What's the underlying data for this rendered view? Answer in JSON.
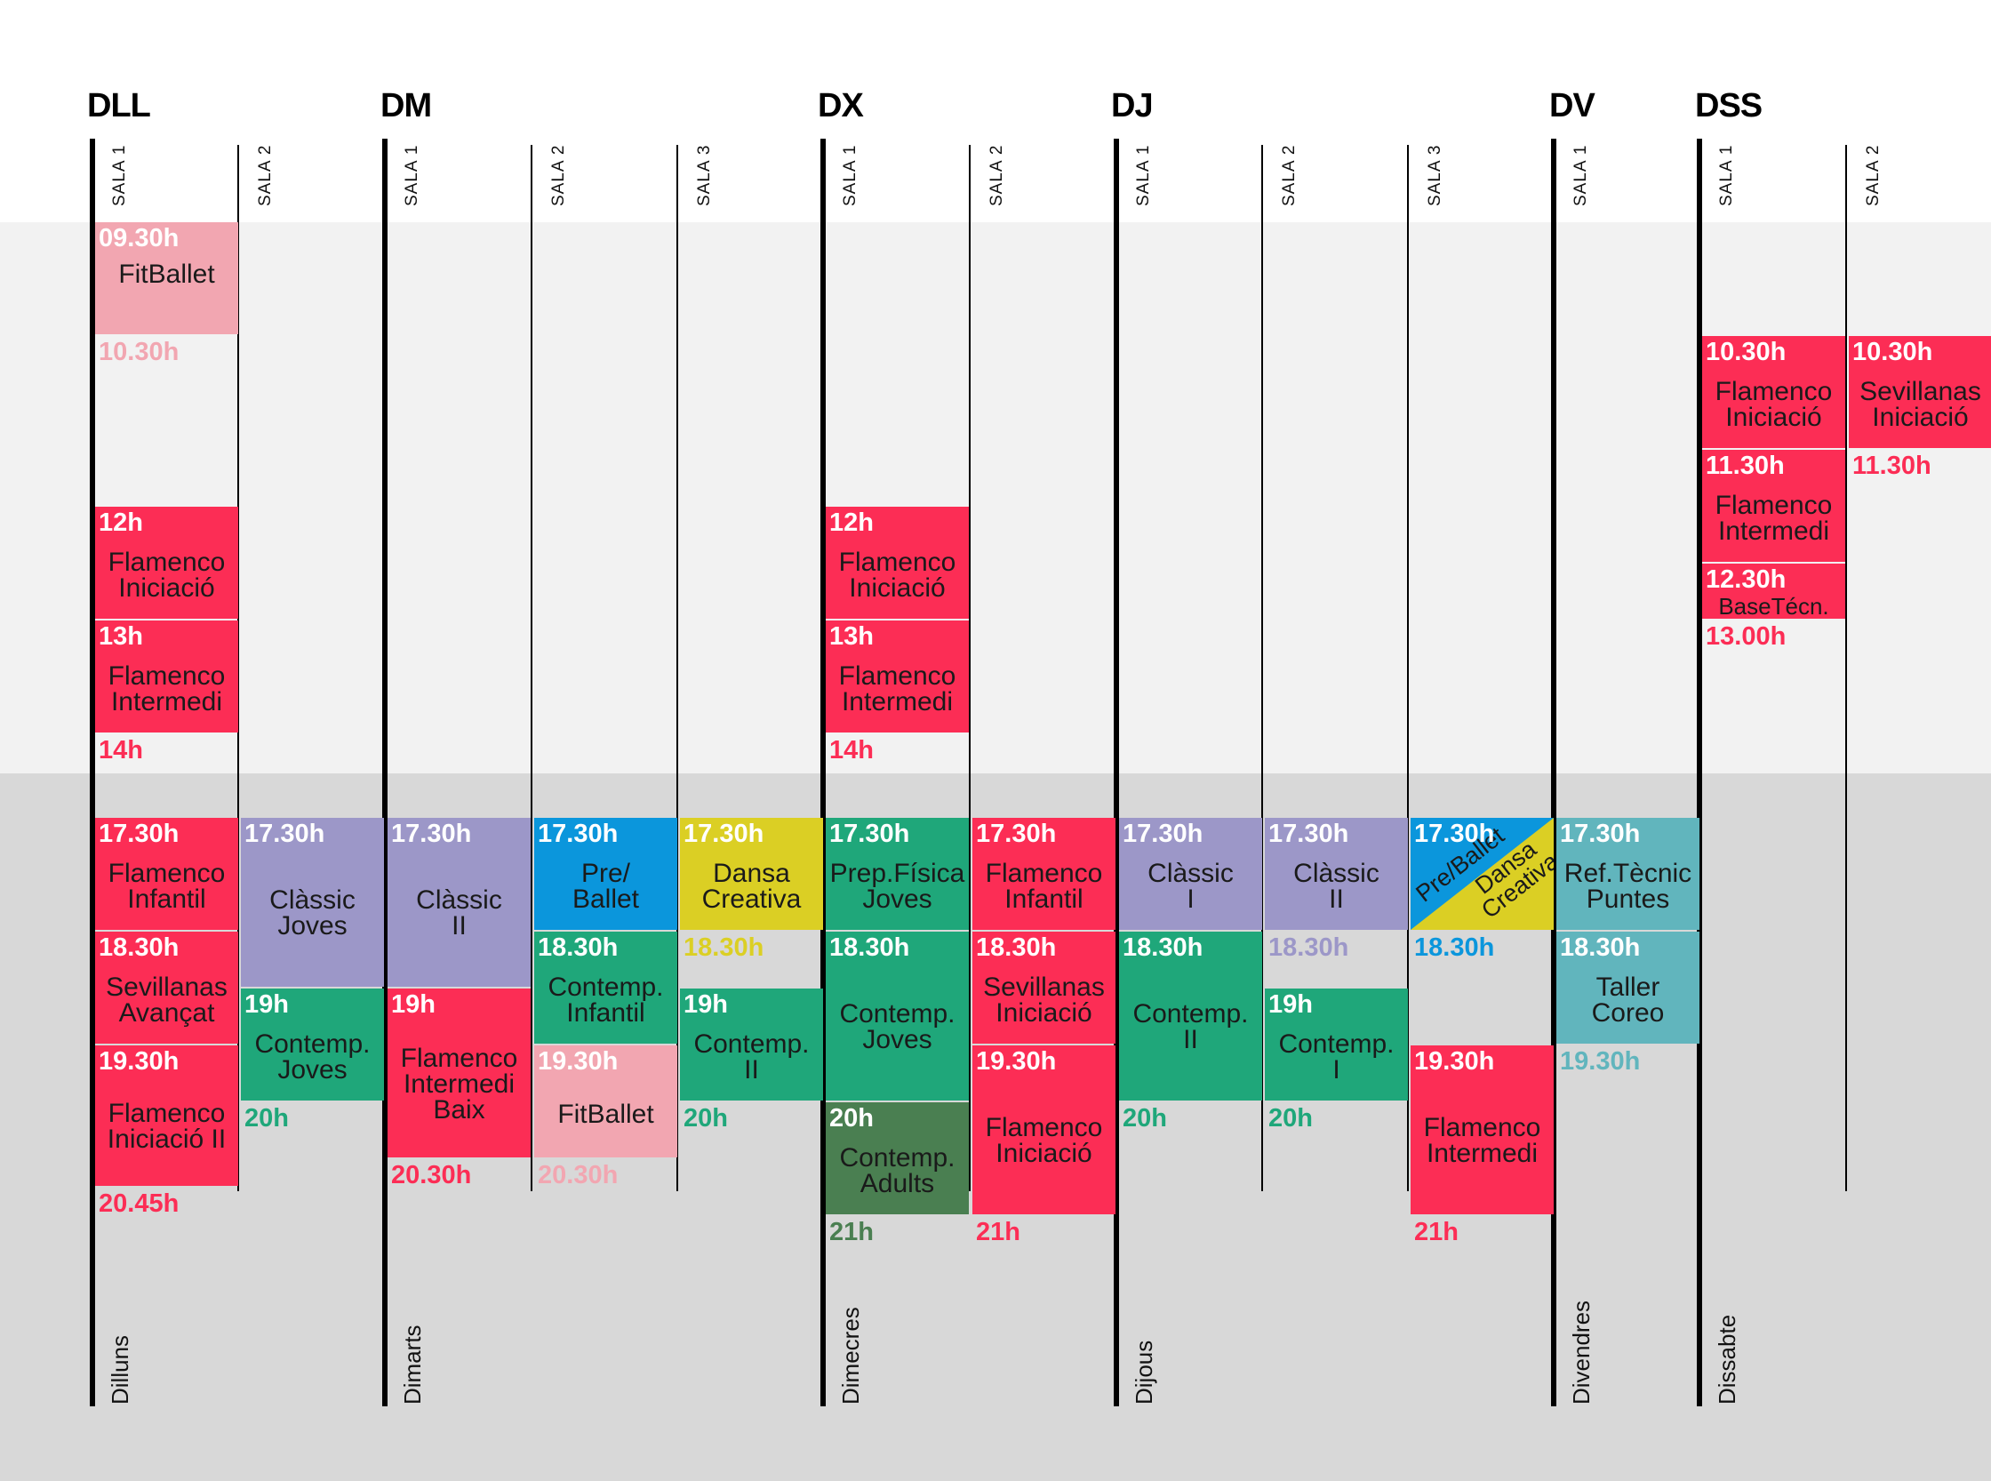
{
  "colors": {
    "white": "#ffffff",
    "light_grey": "#f2f2f2",
    "mid_grey": "#d8d8d8",
    "flamenco_red": "#fc2d55",
    "fitballet_pink": "#f2a6b1",
    "classic_lavender": "#9c97c8",
    "contemp_green": "#1fa77a",
    "adults_darkgreen": "#4a7f51",
    "preballet_blue": "#0b96dc",
    "dansa_yellow": "#dbcf24",
    "tecnic_teal": "#61b5bd"
  },
  "days": [
    {
      "code": "DLL",
      "name": "Dilluns",
      "salas": [
        "SALA 1",
        "SALA 2"
      ]
    },
    {
      "code": "DM",
      "name": "Dimarts",
      "salas": [
        "SALA 1",
        "SALA 2",
        "SALA 3"
      ]
    },
    {
      "code": "DX",
      "name": "Dimecres",
      "salas": [
        "SALA 1",
        "SALA 2"
      ]
    },
    {
      "code": "DJ",
      "name": "Dijous",
      "salas": [
        "SALA 1",
        "SALA 2",
        "SALA 3"
      ]
    },
    {
      "code": "DV",
      "name": "Divendres",
      "salas": [
        "SALA 1"
      ]
    },
    {
      "code": "DSS",
      "name": "Dissabte",
      "salas": [
        "SALA 1",
        "SALA 2"
      ]
    }
  ],
  "classes": [
    {
      "day": "DLL",
      "sala": 1,
      "start": "09.30h",
      "name": "FitBallet",
      "color": "fitballet_pink"
    },
    {
      "day": "DLL",
      "sala": 1,
      "start": "12h",
      "name": "Flamenco\nIniciació",
      "color": "flamenco_red"
    },
    {
      "day": "DLL",
      "sala": 1,
      "start": "13h",
      "name": "Flamenco\nIntermedi",
      "color": "flamenco_red"
    },
    {
      "day": "DLL",
      "sala": 1,
      "start": "17.30h",
      "name": "Flamenco\nInfantil",
      "color": "flamenco_red"
    },
    {
      "day": "DLL",
      "sala": 1,
      "start": "18.30h",
      "name": "Sevillanas\nAvançat",
      "color": "flamenco_red"
    },
    {
      "day": "DLL",
      "sala": 1,
      "start": "19.30h",
      "name": "Flamenco\nIniciació II",
      "color": "flamenco_red"
    },
    {
      "day": "DLL",
      "sala": 2,
      "start": "17.30h",
      "name": "Clàssic\nJoves",
      "color": "classic_lavender"
    },
    {
      "day": "DLL",
      "sala": 2,
      "start": "19h",
      "name": "Contemp.\nJoves",
      "color": "contemp_green"
    },
    {
      "day": "DM",
      "sala": 1,
      "start": "17.30h",
      "name": "Clàssic\nII",
      "color": "classic_lavender"
    },
    {
      "day": "DM",
      "sala": 1,
      "start": "19h",
      "name": "Flamenco\nIntermedi\nBaix",
      "color": "flamenco_red"
    },
    {
      "day": "DM",
      "sala": 2,
      "start": "17.30h",
      "name": "Pre/\nBallet",
      "color": "preballet_blue"
    },
    {
      "day": "DM",
      "sala": 2,
      "start": "18.30h",
      "name": "Contemp.\nInfantil",
      "color": "contemp_green"
    },
    {
      "day": "DM",
      "sala": 2,
      "start": "19.30h",
      "name": "FitBallet",
      "color": "fitballet_pink"
    },
    {
      "day": "DM",
      "sala": 3,
      "start": "17.30h",
      "name": "Dansa\nCreativa",
      "color": "dansa_yellow"
    },
    {
      "day": "DM",
      "sala": 3,
      "start": "19h",
      "name": "Contemp.\nII",
      "color": "contemp_green"
    },
    {
      "day": "DX",
      "sala": 1,
      "start": "12h",
      "name": "Flamenco\nIniciació",
      "color": "flamenco_red"
    },
    {
      "day": "DX",
      "sala": 1,
      "start": "13h",
      "name": "Flamenco\nIntermedi",
      "color": "flamenco_red"
    },
    {
      "day": "DX",
      "sala": 1,
      "start": "17.30h",
      "name": "Prep.Física\nJoves",
      "color": "contemp_green"
    },
    {
      "day": "DX",
      "sala": 1,
      "start": "18.30h",
      "name": "Contemp.\nJoves",
      "color": "contemp_green"
    },
    {
      "day": "DX",
      "sala": 1,
      "start": "20h",
      "name": "Contemp.\nAdults",
      "color": "adults_darkgreen"
    },
    {
      "day": "DX",
      "sala": 2,
      "start": "17.30h",
      "name": "Flamenco\nInfantil",
      "color": "flamenco_red"
    },
    {
      "day": "DX",
      "sala": 2,
      "start": "18.30h",
      "name": "Sevillanas\nIniciació",
      "color": "flamenco_red"
    },
    {
      "day": "DX",
      "sala": 2,
      "start": "19.30h",
      "name": "Flamenco\nIniciació",
      "color": "flamenco_red"
    },
    {
      "day": "DJ",
      "sala": 1,
      "start": "17.30h",
      "name": "Clàssic\nI",
      "color": "classic_lavender"
    },
    {
      "day": "DJ",
      "sala": 1,
      "start": "18.30h",
      "name": "Contemp.\nII",
      "color": "contemp_green"
    },
    {
      "day": "DJ",
      "sala": 2,
      "start": "17.30h",
      "name": "Clàssic\nII",
      "color": "classic_lavender"
    },
    {
      "day": "DJ",
      "sala": 2,
      "start": "19h",
      "name": "Contemp.\nI",
      "color": "contemp_green"
    },
    {
      "day": "DJ",
      "sala": 3,
      "start": "17.30h",
      "name": "Pre/Ballet",
      "name2": "Dansa\nCreativa",
      "color": "preballet_blue",
      "color2": "dansa_yellow"
    },
    {
      "day": "DJ",
      "sala": 3,
      "start": "19.30h",
      "name": "Flamenco\nIntermedi",
      "color": "flamenco_red"
    },
    {
      "day": "DV",
      "sala": 1,
      "start": "17.30h",
      "name": "Ref.Tècnic\nPuntes",
      "color": "tecnic_teal"
    },
    {
      "day": "DV",
      "sala": 1,
      "start": "18.30h",
      "name": "Taller\nCoreo",
      "color": "tecnic_teal"
    },
    {
      "day": "DSS",
      "sala": 1,
      "start": "10.30h",
      "name": "Flamenco\nIniciació",
      "color": "flamenco_red"
    },
    {
      "day": "DSS",
      "sala": 1,
      "start": "11.30h",
      "name": "Flamenco\nIntermedi",
      "color": "flamenco_red"
    },
    {
      "day": "DSS",
      "sala": 1,
      "start": "12.30h",
      "name": "BaseTécn.",
      "color": "flamenco_red"
    },
    {
      "day": "DSS",
      "sala": 2,
      "start": "10.30h",
      "name": "Sevillanas\nIniciació",
      "color": "flamenco_red"
    }
  ],
  "end_labels": [
    {
      "day": "DLL",
      "sala": 1,
      "text": "10.30h",
      "color": "fitballet_pink"
    },
    {
      "day": "DLL",
      "sala": 1,
      "text": "14h",
      "color": "flamenco_red"
    },
    {
      "day": "DLL",
      "sala": 1,
      "text": "20.45h",
      "color": "flamenco_red"
    },
    {
      "day": "DLL",
      "sala": 2,
      "text": "20h",
      "color": "contemp_green"
    },
    {
      "day": "DM",
      "sala": 1,
      "text": "20.30h",
      "color": "flamenco_red"
    },
    {
      "day": "DM",
      "sala": 2,
      "text": "20.30h",
      "color": "fitballet_pink"
    },
    {
      "day": "DM",
      "sala": 3,
      "text": "18.30h",
      "color": "dansa_yellow"
    },
    {
      "day": "DM",
      "sala": 3,
      "text": "20h",
      "color": "contemp_green"
    },
    {
      "day": "DX",
      "sala": 1,
      "text": "14h",
      "color": "flamenco_red"
    },
    {
      "day": "DX",
      "sala": 1,
      "text": "21h",
      "color": "adults_darkgreen"
    },
    {
      "day": "DX",
      "sala": 2,
      "text": "21h",
      "color": "flamenco_red"
    },
    {
      "day": "DJ",
      "sala": 1,
      "text": "20h",
      "color": "contemp_green"
    },
    {
      "day": "DJ",
      "sala": 2,
      "text": "18.30h",
      "color": "classic_lavender"
    },
    {
      "day": "DJ",
      "sala": 2,
      "text": "20h",
      "color": "contemp_green"
    },
    {
      "day": "DJ",
      "sala": 3,
      "text": "18.30h",
      "color": "preballet_blue"
    },
    {
      "day": "DJ",
      "sala": 3,
      "text": "21h",
      "color": "flamenco_red"
    },
    {
      "day": "DV",
      "sala": 1,
      "text": "19.30h",
      "color": "tecnic_teal"
    },
    {
      "day": "DSS",
      "sala": 1,
      "text": "13.00h",
      "color": "flamenco_red"
    },
    {
      "day": "DSS",
      "sala": 2,
      "text": "11.30h",
      "color": "flamenco_red"
    }
  ]
}
